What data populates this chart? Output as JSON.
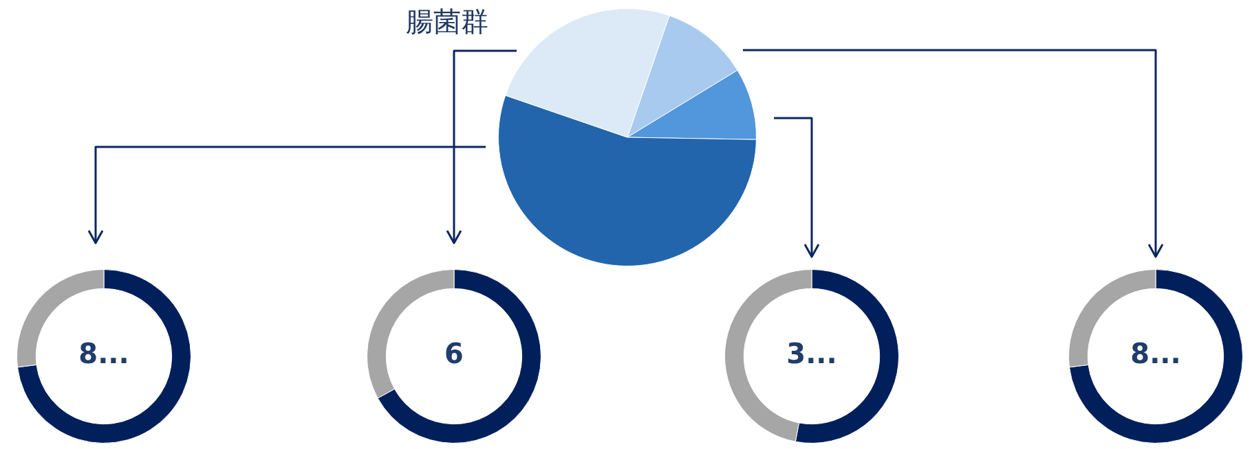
{
  "chart_data": [
    {
      "type": "pie",
      "title": "腸菌群",
      "categories": [
        null,
        null,
        null,
        null
      ],
      "values": [
        11,
        9,
        55,
        25
      ],
      "colors": [
        "#a9caef",
        "#5296dc",
        "#2265ad",
        "#dce9f7"
      ]
    },
    {
      "type": "donut",
      "categories": [
        null,
        null
      ],
      "values": [
        73,
        27
      ],
      "colors": [
        "#001f5b",
        "#a6a6a6"
      ],
      "annotations": [
        "8..."
      ]
    },
    {
      "type": "donut",
      "categories": [
        null,
        null
      ],
      "values": [
        67,
        33
      ],
      "colors": [
        "#001f5b",
        "#a6a6a6"
      ],
      "annotations": [
        "6"
      ]
    },
    {
      "type": "donut",
      "categories": [
        null,
        null
      ],
      "values": [
        53,
        47
      ],
      "colors": [
        "#001f5b",
        "#a6a6a6"
      ],
      "annotations": [
        "3..."
      ]
    },
    {
      "type": "donut",
      "categories": [
        null,
        null
      ],
      "values": [
        73,
        27
      ],
      "colors": [
        "#001f5b",
        "#a6a6a6"
      ],
      "annotations": [
        "8..."
      ]
    }
  ]
}
